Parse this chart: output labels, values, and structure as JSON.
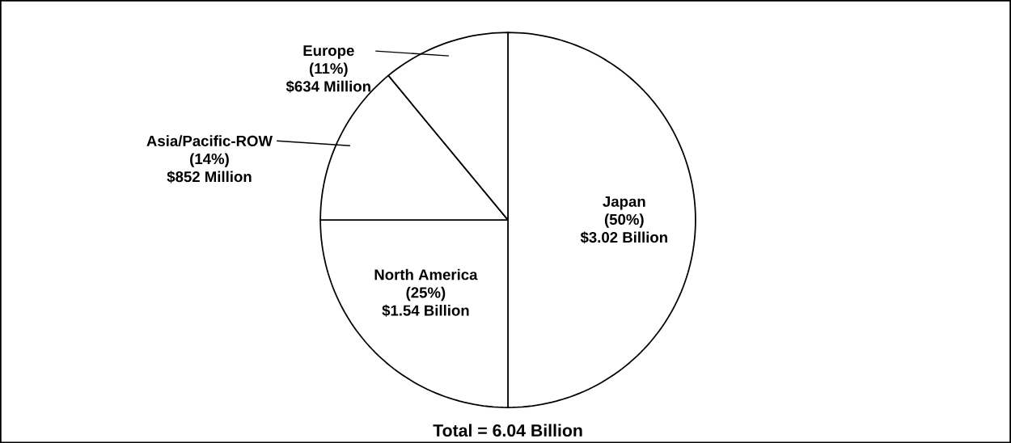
{
  "chart_data": {
    "type": "pie",
    "categories": [
      "Japan",
      "North America",
      "Asia/Pacific-ROW",
      "Europe"
    ],
    "values": [
      50,
      25,
      14,
      11
    ],
    "colors": [
      "#ffffff",
      "#ffffff",
      "#ffffff",
      "#ffffff"
    ],
    "value_labels": [
      "(50%)",
      "(25%)",
      "(14%)",
      "(11%)"
    ],
    "annotations": [
      "$3.02 Billion",
      "$1.54 Billion",
      "$852 Million",
      "$634 Million",
      "Total = 6.04 Billion"
    ]
  }
}
